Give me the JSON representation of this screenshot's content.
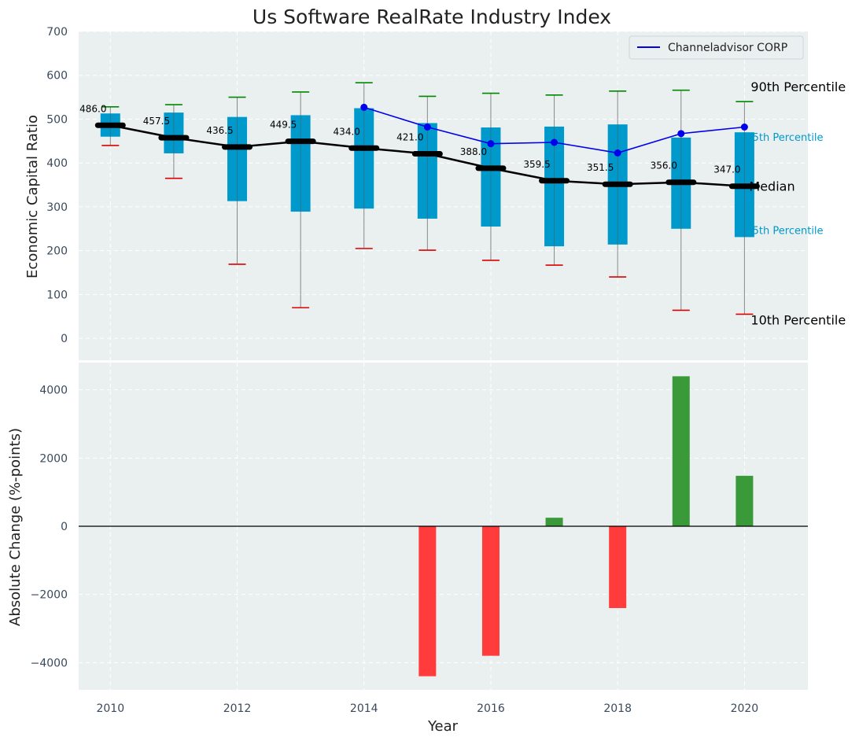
{
  "chart_data": [
    {
      "type": "box",
      "title": "Us Software RealRate Industry Index",
      "xlabel": "",
      "ylabel": "Economic Capital Ratio",
      "ylim": [
        -50,
        700
      ],
      "yticks": [
        0,
        100,
        200,
        300,
        400,
        500,
        600,
        700
      ],
      "grid": true,
      "legend_position": "top-right",
      "years": [
        2010,
        2011,
        2012,
        2013,
        2014,
        2015,
        2016,
        2017,
        2018,
        2019,
        2020
      ],
      "p10": [
        440,
        365,
        169,
        70,
        205,
        201,
        178,
        167,
        140,
        64,
        55
      ],
      "p25": [
        460,
        422,
        313,
        289,
        296,
        273,
        255,
        210,
        214,
        250,
        231
      ],
      "median": [
        486.0,
        457.5,
        436.5,
        449.5,
        434.0,
        421.0,
        388.0,
        359.5,
        351.5,
        356.0,
        347.0
      ],
      "median_labels": [
        "486.0",
        "457.5",
        "436.5",
        "449.5",
        "434.0",
        "421.0",
        "388.0",
        "359.5",
        "351.5",
        "356.0",
        "347.0"
      ],
      "p75": [
        513,
        515,
        505,
        509,
        525,
        491,
        481,
        483,
        488,
        458,
        470
      ],
      "p90": [
        528,
        533,
        550,
        562,
        583,
        552,
        559,
        555,
        564,
        566,
        540
      ],
      "company": {
        "name": "Channeladvisor CORP",
        "years": [
          2014,
          2015,
          2016,
          2017,
          2018,
          2019,
          2020
        ],
        "values": [
          527,
          482,
          444,
          447,
          423,
          467,
          482
        ]
      },
      "annotations": {
        "p90": "90th Percentile",
        "p75": "75th Percentile",
        "median": "Median",
        "p25": "25th Percentile",
        "p10": "10th Percentile"
      },
      "colors": {
        "box": "#0099cc",
        "median_line": "#000000",
        "company_line": "#0000ee",
        "p90_cap": "#008800",
        "p10_cap": "#dd0000",
        "background": "#eaeff0"
      }
    },
    {
      "type": "bar",
      "xlabel": "Year",
      "ylabel": "Absolute Change (%-points)",
      "ylim": [
        -4800,
        4800
      ],
      "yticks": [
        -4000,
        -2000,
        0,
        2000,
        4000
      ],
      "ytick_labels": [
        "−4000",
        "−2000",
        "0",
        "2000",
        "4000"
      ],
      "xticks": [
        2010,
        2012,
        2014,
        2016,
        2018,
        2020
      ],
      "grid": true,
      "x": [
        2015,
        2016,
        2017,
        2018,
        2019,
        2020
      ],
      "values": [
        -4400,
        -3800,
        250,
        -2400,
        4400,
        1480
      ],
      "colors": {
        "positive": "#3a9a3a",
        "negative": "#ff3b3b"
      }
    }
  ]
}
